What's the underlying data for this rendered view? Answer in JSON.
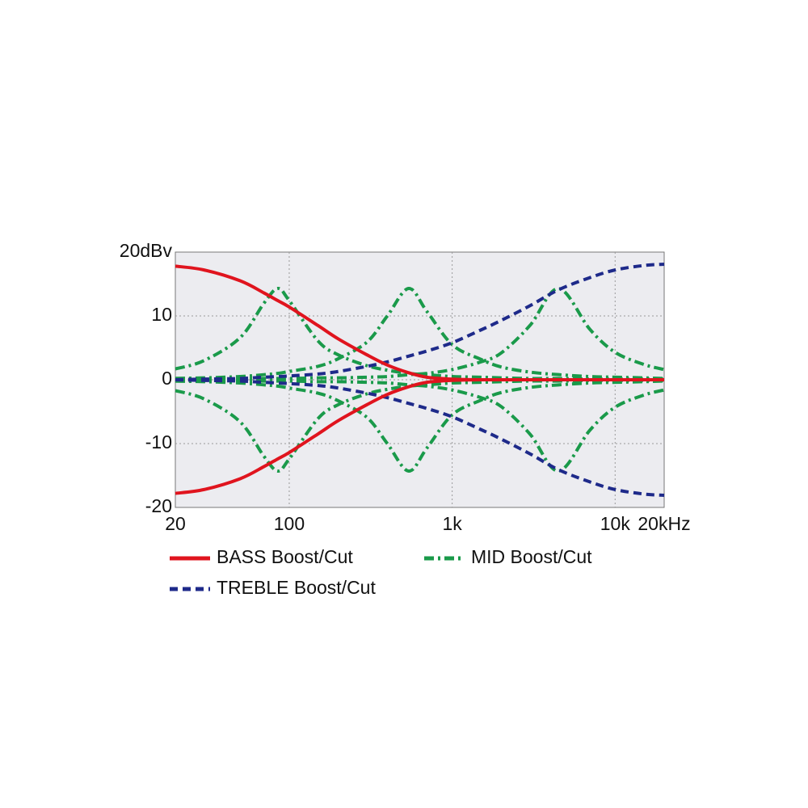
{
  "chart_data": {
    "type": "line",
    "xscale": "log",
    "grid": true,
    "x": [
      20,
      30,
      50,
      70,
      85,
      100,
      150,
      200,
      300,
      400,
      540,
      700,
      1000,
      1500,
      2000,
      3000,
      4500,
      7000,
      10000,
      15000,
      20000
    ],
    "xlim": [
      20,
      20000
    ],
    "xticks": [
      20,
      100,
      {
        "value": 1000,
        "label": "1k"
      },
      {
        "value": 10000,
        "label": "10k"
      },
      {
        "value": 20000,
        "label": "20kHz"
      }
    ],
    "ylim": [
      -20,
      20
    ],
    "yticks": [
      {
        "value": 20,
        "label": "20dBv"
      },
      10,
      0,
      -10,
      -20
    ],
    "series": [
      {
        "name": "BASS Boost/Cut",
        "color": "#e0141e",
        "dash": "none",
        "curves": [
          [
            17.8,
            17.2,
            15.5,
            13.6,
            12.4,
            11.4,
            8.5,
            6.4,
            3.9,
            2.3,
            1.1,
            0.4,
            0.1,
            0,
            0,
            0,
            0,
            0,
            0,
            0,
            0
          ],
          [
            -17.8,
            -17.2,
            -15.5,
            -13.6,
            -12.4,
            -11.4,
            -8.5,
            -6.4,
            -3.9,
            -2.3,
            -1.1,
            -0.4,
            -0.1,
            0,
            0,
            0,
            0,
            0,
            0,
            0,
            0
          ]
        ]
      },
      {
        "name": "MID Boost/Cut",
        "color": "#1a9a4a",
        "dash": "12,5,3,5",
        "curves": [
          [
            1.7,
            3.0,
            6.6,
            12,
            14.3,
            12.4,
            6.1,
            3.9,
            2.2,
            1.5,
            1.0,
            0.8,
            0.5,
            0.4,
            0.3,
            0.2,
            0.2,
            0.1,
            0.1,
            0.1,
            0.1
          ],
          [
            -1.7,
            -3.0,
            -6.6,
            -12,
            -14.3,
            -12.4,
            -6.1,
            -3.9,
            -2.2,
            -1.5,
            -1.0,
            -0.8,
            -0.5,
            -0.4,
            -0.3,
            -0.2,
            -0.2,
            -0.1,
            -0.1,
            -0.1,
            -0.1
          ],
          [
            0.2,
            0.3,
            0.5,
            0.8,
            1.0,
            1.3,
            2.1,
            3.3,
            5.9,
            10,
            14.3,
            10.7,
            5.5,
            3.2,
            2.0,
            1.2,
            0.8,
            0.5,
            0.4,
            0.3,
            0.2
          ],
          [
            -0.2,
            -0.3,
            -0.5,
            -0.8,
            -1.0,
            -1.3,
            -2.1,
            -3.3,
            -5.9,
            -10,
            -14.3,
            -10.7,
            -5.5,
            -3.2,
            -2.0,
            -1.2,
            -0.8,
            -0.5,
            -0.4,
            -0.3,
            -0.2
          ],
          [
            0.2,
            0.2,
            0.2,
            0.2,
            0.2,
            0.2,
            0.3,
            0.3,
            0.4,
            0.5,
            0.8,
            1.0,
            1.6,
            2.8,
            4.2,
            8.5,
            14.3,
            7.9,
            4.3,
            2.4,
            1.6
          ],
          [
            -0.2,
            -0.2,
            -0.2,
            -0.2,
            -0.2,
            -0.2,
            -0.3,
            -0.3,
            -0.4,
            -0.5,
            -0.8,
            -1.0,
            -1.6,
            -2.8,
            -4.2,
            -8.5,
            -14.3,
            -7.9,
            -4.3,
            -2.4,
            -1.6
          ]
        ]
      },
      {
        "name": "TREBLE Boost/Cut",
        "color": "#1e2a8a",
        "dash": "10,6",
        "curves": [
          [
            0,
            0.1,
            0.2,
            0.4,
            0.5,
            0.6,
            0.9,
            1.3,
            2.1,
            2.8,
            3.7,
            4.5,
            5.8,
            7.8,
            9.3,
            11.6,
            14.1,
            16,
            17.2,
            17.9,
            18.1
          ],
          [
            0,
            -0.1,
            -0.2,
            -0.4,
            -0.5,
            -0.6,
            -0.9,
            -1.3,
            -2.1,
            -2.8,
            -3.7,
            -4.5,
            -5.8,
            -7.8,
            -9.3,
            -11.6,
            -14.1,
            -16,
            -17.2,
            -17.9,
            -18.1
          ]
        ]
      }
    ]
  }
}
